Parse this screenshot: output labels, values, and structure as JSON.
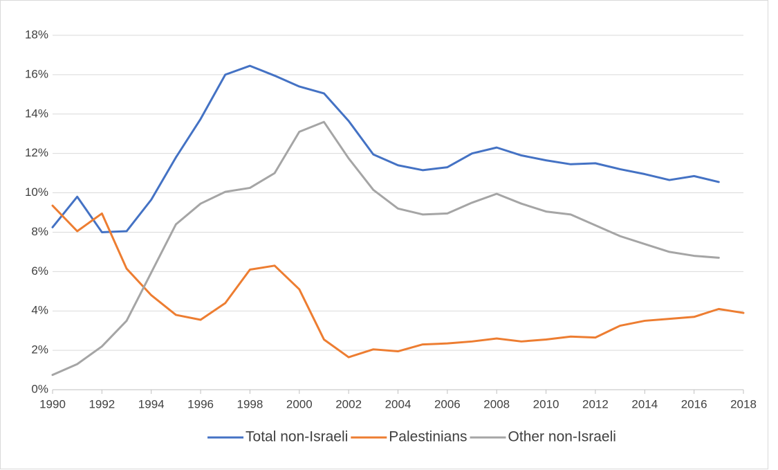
{
  "chart_data": {
    "type": "line",
    "x": [
      1990,
      1991,
      1992,
      1993,
      1994,
      1995,
      1996,
      1997,
      1998,
      1999,
      2000,
      2001,
      2002,
      2003,
      2004,
      2005,
      2006,
      2007,
      2008,
      2009,
      2010,
      2011,
      2012,
      2013,
      2014,
      2015,
      2016,
      2017,
      2018
    ],
    "series": [
      {
        "name": "Total non-Israeli",
        "color": "#4472c4",
        "values": [
          8.25,
          9.8,
          8.0,
          8.05,
          9.65,
          11.8,
          13.75,
          16.0,
          16.45,
          15.95,
          15.4,
          15.05,
          13.65,
          11.95,
          11.4,
          11.15,
          11.3,
          12.0,
          12.3,
          11.9,
          11.65,
          11.45,
          11.5,
          11.2,
          10.95,
          10.65,
          10.85,
          10.55,
          null
        ]
      },
      {
        "name": "Palestinians",
        "color": "#ed7d31",
        "values": [
          9.35,
          8.05,
          8.95,
          6.15,
          4.8,
          3.8,
          3.55,
          4.4,
          6.1,
          6.3,
          5.1,
          2.55,
          1.65,
          2.05,
          1.95,
          2.3,
          2.35,
          2.45,
          2.6,
          2.45,
          2.55,
          2.7,
          2.65,
          3.25,
          3.5,
          3.6,
          3.7,
          4.1,
          3.9
        ]
      },
      {
        "name": "Other non-Israeli",
        "color": "#a5a5a5",
        "values": [
          0.75,
          1.3,
          2.2,
          3.5,
          5.95,
          8.4,
          9.45,
          10.05,
          10.25,
          11.0,
          13.1,
          13.6,
          11.75,
          10.15,
          9.2,
          8.9,
          8.95,
          9.5,
          9.95,
          9.45,
          9.05,
          8.9,
          8.35,
          7.8,
          7.4,
          7.0,
          6.8,
          6.7,
          null
        ]
      }
    ],
    "xlim": [
      1990,
      2018
    ],
    "xticks": [
      1990,
      1992,
      1994,
      1996,
      1998,
      2000,
      2002,
      2004,
      2006,
      2008,
      2010,
      2012,
      2014,
      2016,
      2018
    ],
    "ylim": [
      0,
      18
    ],
    "yticks": [
      {
        "value": 0,
        "label": "0%"
      },
      {
        "value": 2,
        "label": "2%"
      },
      {
        "value": 4,
        "label": "4%"
      },
      {
        "value": 6,
        "label": "6%"
      },
      {
        "value": 8,
        "label": "8%"
      },
      {
        "value": 10,
        "label": "10%"
      },
      {
        "value": 12,
        "label": "12%"
      },
      {
        "value": 14,
        "label": "14%"
      },
      {
        "value": 16,
        "label": "16%"
      },
      {
        "value": 18,
        "label": "18%"
      }
    ],
    "grid": true,
    "legend": "bottom"
  }
}
